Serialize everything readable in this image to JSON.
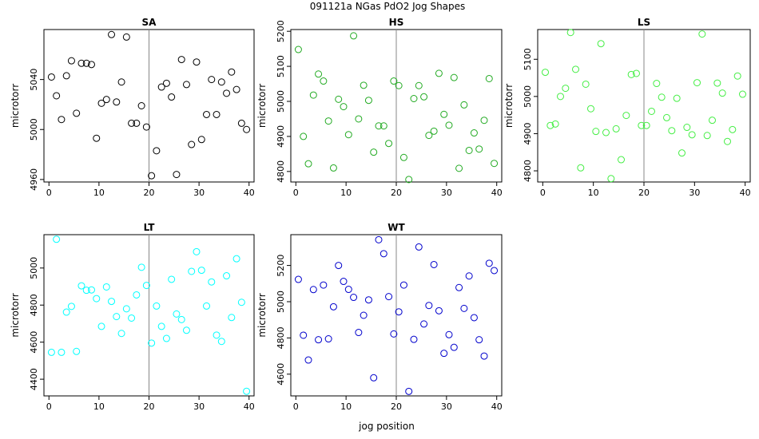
{
  "figure": {
    "title": "091121a   NGas PdO2 Jog Shapes",
    "xlabel": "jog position"
  },
  "chart_data": [
    {
      "type": "scatter",
      "title": "SA",
      "ylabel": "microtorr",
      "color": "#000000",
      "xlim": [
        -1,
        41
      ],
      "ylim": [
        4958,
        5080
      ],
      "xticks": [
        0,
        10,
        20,
        30,
        40
      ],
      "yticks": [
        4960,
        5000,
        5040
      ],
      "vline": 20,
      "x": [
        0.5,
        1.5,
        2.5,
        3.5,
        4.5,
        5.5,
        6.5,
        7.5,
        8.5,
        9.5,
        10.5,
        11.5,
        12.5,
        13.5,
        14.5,
        15.5,
        16.5,
        17.5,
        18.5,
        19.5,
        20.5,
        21.5,
        22.5,
        23.5,
        24.5,
        25.5,
        26.5,
        27.5,
        28.5,
        29.5,
        30.5,
        31.5,
        32.5,
        33.5,
        34.5,
        35.5,
        36.5,
        37.5,
        38.5,
        39.5
      ],
      "y": [
        5042,
        5027,
        5008,
        5043,
        5055,
        5013,
        5053,
        5053,
        5052,
        4993,
        5021,
        5024,
        5076,
        5022,
        5038,
        5074,
        5005,
        5005,
        5019,
        5002,
        4963,
        4983,
        5034,
        5037,
        5026,
        4964,
        5056,
        5036,
        4988,
        5054,
        4992,
        5012,
        5040,
        5012,
        5038,
        5029,
        5046,
        5032,
        5005,
        5000
      ]
    },
    {
      "type": "scatter",
      "title": "HS",
      "ylabel": "microtorr",
      "color": "#22aa22",
      "xlim": [
        -1,
        41
      ],
      "ylim": [
        4770,
        5205
      ],
      "xticks": [
        0,
        10,
        20,
        30,
        40
      ],
      "yticks": [
        4800,
        4900,
        5000,
        5100,
        5200
      ],
      "vline": 20,
      "x": [
        0.5,
        1.5,
        2.5,
        3.5,
        4.5,
        5.5,
        6.5,
        7.5,
        8.5,
        9.5,
        10.5,
        11.5,
        12.5,
        13.5,
        14.5,
        15.5,
        16.5,
        17.5,
        18.5,
        19.5,
        20.5,
        21.5,
        22.5,
        23.5,
        24.5,
        25.5,
        26.5,
        27.5,
        28.5,
        29.5,
        30.5,
        31.5,
        32.5,
        33.5,
        34.5,
        35.5,
        36.5,
        37.5,
        38.5,
        39.5
      ],
      "y": [
        5148,
        4900,
        4822,
        5018,
        5078,
        5058,
        4944,
        4810,
        5006,
        4985,
        4905,
        5187,
        4950,
        5046,
        5003,
        4855,
        4930,
        4930,
        4880,
        5058,
        5045,
        4840,
        4777,
        5008,
        5045,
        5013,
        4903,
        4915,
        5080,
        4963,
        4932,
        5068,
        4809,
        4990,
        4860,
        4910,
        4864,
        4946,
        5065,
        4823
      ]
    },
    {
      "type": "scatter",
      "title": "LS",
      "ylabel": "microtorr",
      "color": "#44ee44",
      "xlim": [
        -1,
        41
      ],
      "ylim": [
        4770,
        5180
      ],
      "xticks": [
        0,
        10,
        20,
        30,
        40
      ],
      "yticks": [
        4800,
        4900,
        5000,
        5100
      ],
      "vline": 20,
      "x": [
        0.5,
        1.5,
        2.5,
        3.5,
        4.5,
        5.5,
        6.5,
        7.5,
        8.5,
        9.5,
        10.5,
        11.5,
        12.5,
        13.5,
        14.5,
        15.5,
        16.5,
        17.5,
        18.5,
        19.5,
        20.5,
        21.5,
        22.5,
        23.5,
        24.5,
        25.5,
        26.5,
        27.5,
        28.5,
        29.5,
        30.5,
        31.5,
        32.5,
        33.5,
        34.5,
        35.5,
        36.5,
        37.5,
        38.5,
        39.5
      ],
      "y": [
        5065,
        4922,
        4926,
        5000,
        5022,
        5172,
        5073,
        4808,
        5033,
        4967,
        4906,
        5142,
        4903,
        4779,
        4913,
        4830,
        4949,
        5059,
        5062,
        4922,
        4922,
        4960,
        5035,
        4998,
        4943,
        4908,
        4995,
        4848,
        4917,
        4897,
        5037,
        5168,
        4895,
        4936,
        5036,
        5009,
        4879,
        4911,
        5055,
        5006
      ]
    },
    {
      "type": "scatter",
      "title": "LT",
      "ylabel": "microtorr",
      "color": "#00ffff",
      "xlim": [
        -1,
        41
      ],
      "ylim": [
        4310,
        5180
      ],
      "xticks": [
        0,
        10,
        20,
        30,
        40
      ],
      "yticks": [
        4400,
        4600,
        4800,
        5000
      ],
      "vline": 20,
      "x": [
        0.5,
        1.5,
        2.5,
        3.5,
        4.5,
        5.5,
        6.5,
        7.5,
        8.5,
        9.5,
        10.5,
        11.5,
        12.5,
        13.5,
        14.5,
        15.5,
        16.5,
        17.5,
        18.5,
        19.5,
        20.5,
        21.5,
        22.5,
        23.5,
        24.5,
        25.5,
        26.5,
        27.5,
        28.5,
        29.5,
        30.5,
        31.5,
        32.5,
        33.5,
        34.5,
        35.5,
        36.5,
        37.5,
        38.5,
        39.5
      ],
      "y": [
        4545,
        5155,
        4545,
        4762,
        4793,
        4550,
        4904,
        4880,
        4882,
        4835,
        4685,
        4898,
        4820,
        4738,
        4647,
        4780,
        4730,
        4855,
        5004,
        4906,
        4595,
        4795,
        4685,
        4620,
        4939,
        4752,
        4722,
        4664,
        4982,
        5088,
        4988,
        4795,
        4925,
        4638,
        4604,
        4958,
        4733,
        5050,
        4815,
        4335
      ]
    },
    {
      "type": "scatter",
      "title": "WT",
      "ylabel": "microtorr",
      "color": "#0000cc",
      "xlim": [
        -1,
        41
      ],
      "ylim": [
        4480,
        5370
      ],
      "xticks": [
        0,
        10,
        20,
        30,
        40
      ],
      "yticks": [
        4600,
        4800,
        5000,
        5200
      ],
      "vline": 20,
      "x": [
        0.5,
        1.5,
        2.5,
        3.5,
        4.5,
        5.5,
        6.5,
        7.5,
        8.5,
        9.5,
        10.5,
        11.5,
        12.5,
        13.5,
        14.5,
        15.5,
        16.5,
        17.5,
        18.5,
        19.5,
        20.5,
        21.5,
        22.5,
        23.5,
        24.5,
        25.5,
        26.5,
        27.5,
        28.5,
        29.5,
        30.5,
        31.5,
        32.5,
        33.5,
        34.5,
        35.5,
        36.5,
        37.5,
        38.5,
        39.5
      ],
      "y": [
        5123,
        4815,
        4678,
        5067,
        4790,
        5092,
        4795,
        4972,
        5200,
        5112,
        5068,
        5024,
        4830,
        4925,
        5010,
        4580,
        5342,
        5265,
        5028,
        4822,
        4944,
        5092,
        4505,
        4792,
        5302,
        4877,
        4979,
        5205,
        4950,
        4715,
        4818,
        4748,
        5078,
        4963,
        5142,
        4912,
        4790,
        4700,
        5212,
        5172
      ]
    }
  ]
}
